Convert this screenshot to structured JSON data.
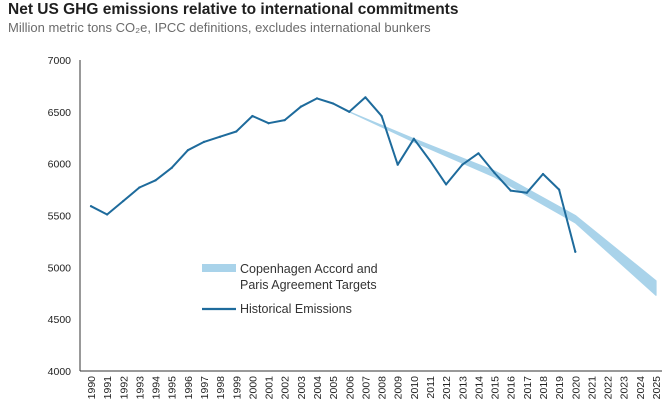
{
  "title": "Net US GHG emissions relative to international commitments",
  "subtitle": "Million metric tons CO₂e, IPCC definitions, excludes international bunkers",
  "colors": {
    "historical": "#1e6b9c",
    "target_band": "#a9d3ea",
    "axis": "#333333",
    "text": "#222222"
  },
  "chart_data": {
    "type": "line",
    "title": "Net US GHG emissions relative to international commitments",
    "subtitle": "Million metric tons CO₂e, IPCC definitions, excludes international bunkers",
    "xlabel": "",
    "ylabel": "",
    "x": [
      1990,
      1991,
      1992,
      1993,
      1994,
      1995,
      1996,
      1997,
      1998,
      1999,
      2000,
      2001,
      2002,
      2003,
      2004,
      2005,
      2006,
      2007,
      2008,
      2009,
      2010,
      2011,
      2012,
      2013,
      2014,
      2015,
      2016,
      2017,
      2018,
      2019,
      2020,
      2021,
      2022,
      2023,
      2024,
      2025
    ],
    "xlim": [
      1990,
      2025
    ],
    "ylim": [
      4000,
      7000
    ],
    "yticks": [
      4000,
      4500,
      5000,
      5500,
      6000,
      6500,
      7000
    ],
    "grid": false,
    "legend_position": "center-left",
    "series": [
      {
        "name": "Historical Emissions",
        "style": "line",
        "x": [
          1990,
          1991,
          1992,
          1993,
          1994,
          1995,
          1996,
          1997,
          1998,
          1999,
          2000,
          2001,
          2002,
          2003,
          2004,
          2005,
          2006,
          2007,
          2008,
          2009,
          2010,
          2011,
          2012,
          2013,
          2014,
          2015,
          2016,
          2017,
          2018,
          2019,
          2020
        ],
        "values": [
          5590,
          5510,
          5640,
          5770,
          5840,
          5960,
          6130,
          6210,
          6260,
          6310,
          6460,
          6390,
          6420,
          6550,
          6630,
          6580,
          6500,
          6640,
          6460,
          5990,
          6240,
          6030,
          5800,
          5990,
          6100,
          5910,
          5740,
          5720,
          5900,
          5750,
          5150
        ]
      },
      {
        "name": "Copenhagen Accord and Paris Agreement Targets",
        "style": "band",
        "x": [
          2006,
          2010,
          2015,
          2020,
          2025
        ],
        "upper": [
          6500,
          6240,
          5930,
          5500,
          4870
        ],
        "lower": [
          6500,
          6210,
          5870,
          5430,
          4730
        ]
      }
    ],
    "legend": [
      {
        "label": "Copenhagen Accord and Paris Agreement Targets",
        "line1": "Copenhagen Accord and",
        "line2": "Paris Agreement Targets",
        "style": "band"
      },
      {
        "label": "Historical Emissions",
        "line1": "Historical Emissions",
        "style": "line"
      }
    ]
  }
}
